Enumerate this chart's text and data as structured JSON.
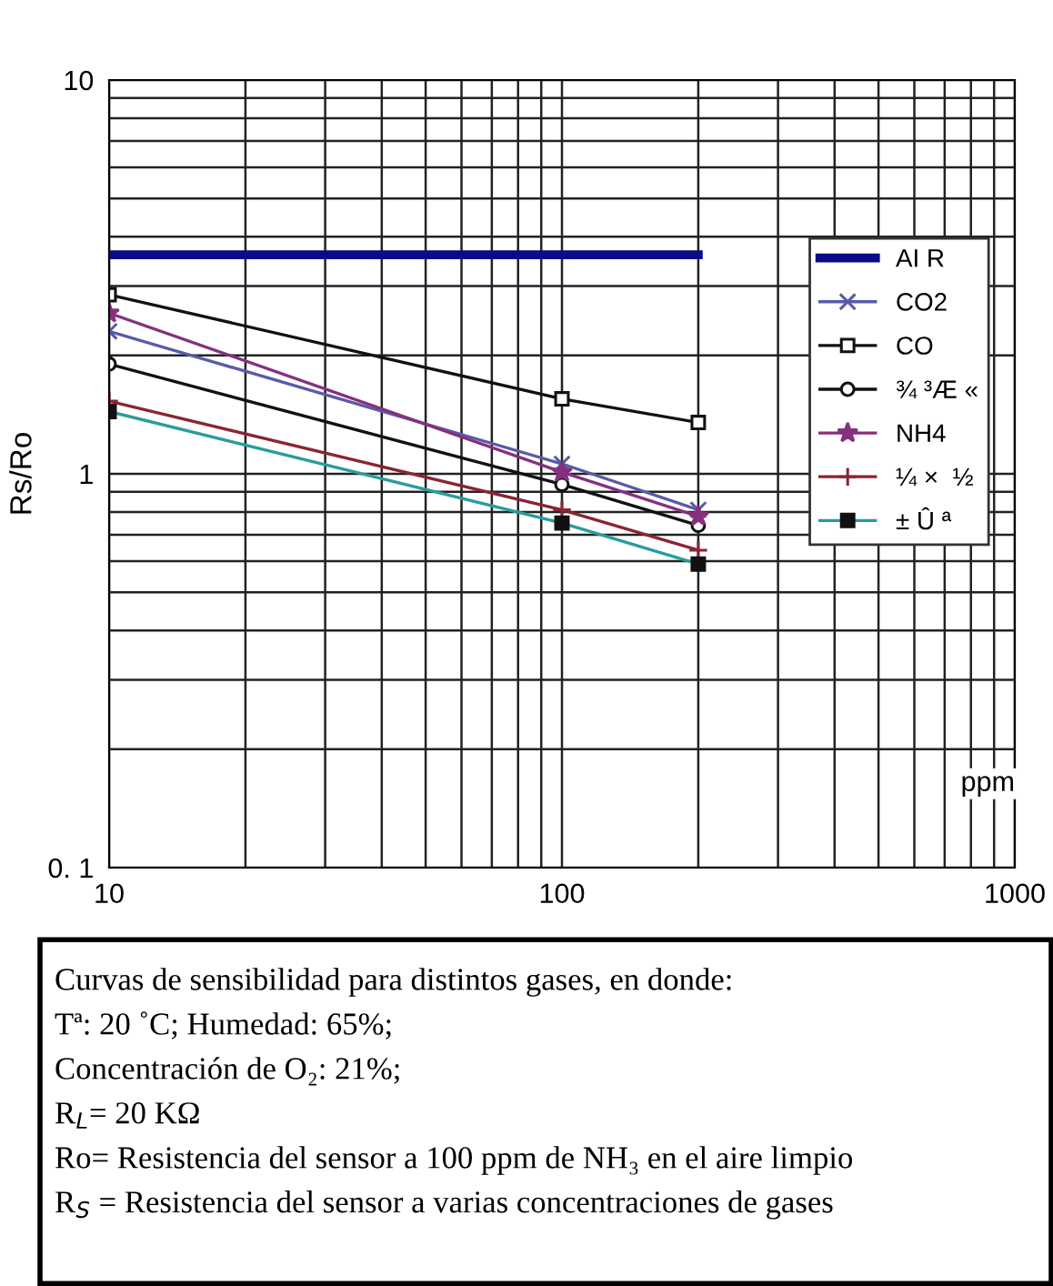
{
  "chart_data": {
    "type": "line",
    "xlabel": "ppm",
    "ylabel": "Rs/Ro",
    "log": "xy",
    "grid": true,
    "legend": "top right",
    "xlim": [
      10,
      1000
    ],
    "ylim": [
      0.1,
      10
    ],
    "xticks": [
      10,
      {
        "value": 20,
        "label": null
      },
      {
        "value": 30,
        "label": null
      },
      {
        "value": 40,
        "label": null
      },
      {
        "value": 50,
        "label": null
      },
      {
        "value": 60,
        "label": null
      },
      {
        "value": 70,
        "label": null
      },
      {
        "value": 80,
        "label": null
      },
      {
        "value": 90,
        "label": null
      },
      100,
      {
        "value": 200,
        "label": null
      },
      {
        "value": 300,
        "label": null
      },
      {
        "value": 400,
        "label": null
      },
      {
        "value": 500,
        "label": null
      },
      {
        "value": 600,
        "label": null
      },
      {
        "value": 700,
        "label": null
      },
      {
        "value": 800,
        "label": null
      },
      {
        "value": 900,
        "label": null
      },
      1000
    ],
    "yticks": [
      {
        "value": 0.1,
        "label": "0. 1"
      },
      {
        "value": 0.2,
        "label": null
      },
      {
        "value": 0.3,
        "label": null
      },
      {
        "value": 0.4,
        "label": null
      },
      {
        "value": 0.5,
        "label": null
      },
      {
        "value": 0.6,
        "label": null
      },
      {
        "value": 0.7,
        "label": null
      },
      {
        "value": 0.8,
        "label": null
      },
      {
        "value": 0.9,
        "label": null
      },
      1,
      {
        "value": 2,
        "label": null
      },
      {
        "value": 3,
        "label": null
      },
      {
        "value": 4,
        "label": null
      },
      {
        "value": 5,
        "label": null
      },
      {
        "value": 6,
        "label": null
      },
      {
        "value": 7,
        "label": null
      },
      {
        "value": 8,
        "label": null
      },
      {
        "value": 9,
        "label": null
      },
      10
    ],
    "x": [
      10,
      100,
      200
    ],
    "series": [
      {
        "name": "AI R",
        "color": "#0b0b85",
        "values": [
          3.6,
          3.6,
          3.6
        ],
        "marker": "none"
      },
      {
        "name": "CO2",
        "color": "#5a5aa8",
        "values": [
          2.3,
          1.06,
          0.81
        ],
        "marker": "cross"
      },
      {
        "name": "CO",
        "color": "#111111",
        "values": [
          2.85,
          1.55,
          1.35
        ],
        "marker": "square"
      },
      {
        "name": "¾ ³Æ «",
        "color": "#111111",
        "values": [
          1.9,
          0.94,
          0.74
        ],
        "marker": "circle"
      },
      {
        "name": "NH4",
        "color": "#86307e",
        "values": [
          2.56,
          1.01,
          0.78
        ],
        "marker": "star"
      },
      {
        "name": "¼ ×  ½",
        "color": "#8a2434",
        "values": [
          1.53,
          0.81,
          0.64
        ],
        "marker": "plus"
      },
      {
        "name": "± Û ª",
        "color": "#2a9c9c",
        "values": [
          1.44,
          0.75,
          0.59
        ],
        "marker": "rect"
      }
    ],
    "annotations": [
      "Curvas de sensibilidad para distintos gases, en donde:",
      "Tª: 20 ˚C; Humedad: 65%;",
      "Concentración de O₂: 21%;",
      "R$_{L}$= 20 KΩ",
      "Ro= Resistencia del sensor a 100 ppm de NH₃ en el aire limpio",
      "R$_{S}$ = Resistencia del sensor a varias concentraciones de gases"
    ]
  }
}
